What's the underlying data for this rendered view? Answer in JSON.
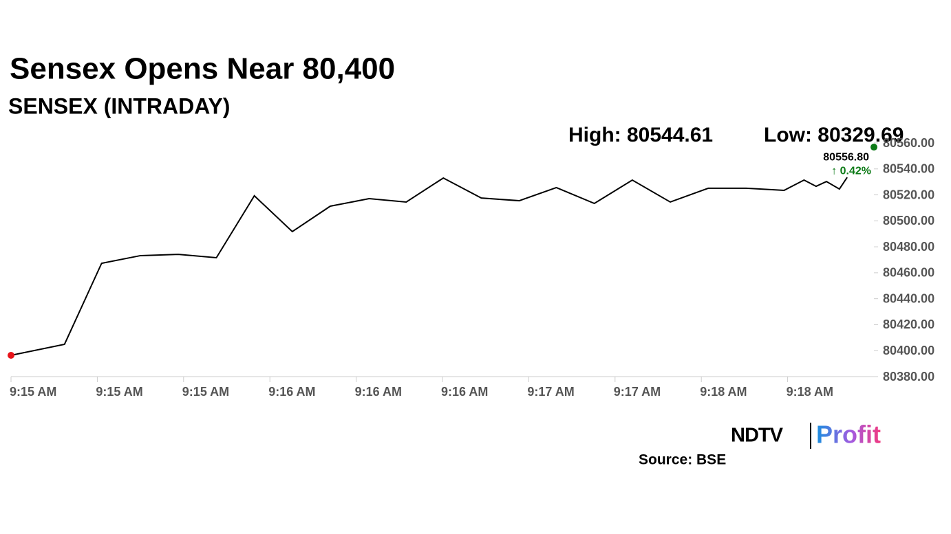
{
  "chart_data": {
    "type": "line",
    "title": "Sensex Opens Near 80,400",
    "subtitle": "SENSEX (INTRADAY)",
    "annotations": [
      "High: 80544.61",
      "Low: 80329.69"
    ],
    "x": [
      0,
      0.62,
      1.05,
      1.5,
      1.94,
      2.38,
      2.82,
      3.26,
      3.7,
      4.15,
      4.58,
      5.01,
      5.45,
      5.89,
      6.32,
      6.76,
      7.2,
      7.64,
      8.08,
      8.52,
      8.96,
      9.19,
      9.33,
      9.45,
      9.6,
      9.69
    ],
    "series": [
      {
        "color": "#000000",
        "values": [
          80396.4,
          80404.9,
          80467.3,
          80473.2,
          80474.2,
          80471.6,
          80519.3,
          80491.7,
          80511.3,
          80517.1,
          80514.5,
          80533.0,
          80517.6,
          80515.5,
          80525.6,
          80513.4,
          80531.4,
          80514.5,
          80525.1,
          80525.1,
          80523.5,
          80531.4,
          80526.6,
          80530.3,
          80524.5,
          80533.5
        ]
      }
    ],
    "markers": [
      {
        "x": 0,
        "value": 80396.4,
        "color": "#e8141a"
      },
      {
        "x": 10,
        "value": 80556.8,
        "color": "#0c7a16",
        "value_label": "80556.80",
        "change": "↑ 0.42%"
      }
    ],
    "xlim": [
      0,
      10
    ],
    "xticks": [
      {
        "value": 0,
        "label": "9:15 AM"
      },
      {
        "value": 1,
        "label": "9:15 AM"
      },
      {
        "value": 2,
        "label": "9:15 AM"
      },
      {
        "value": 3,
        "label": "9:16 AM"
      },
      {
        "value": 4,
        "label": "9:16 AM"
      },
      {
        "value": 5,
        "label": "9:16 AM"
      },
      {
        "value": 6,
        "label": "9:17 AM"
      },
      {
        "value": 7,
        "label": "9:17 AM"
      },
      {
        "value": 8,
        "label": "9:18 AM"
      },
      {
        "value": 9,
        "label": "9:18 AM"
      }
    ],
    "ylim": [
      80380,
      80560
    ],
    "yticks": [
      {
        "value": 80380,
        "label": "80380.00"
      },
      {
        "value": 80400,
        "label": "80400.00"
      },
      {
        "value": 80420,
        "label": "80420.00"
      },
      {
        "value": 80440,
        "label": "80440.00"
      },
      {
        "value": 80460,
        "label": "80460.00"
      },
      {
        "value": 80480,
        "label": "80480.00"
      },
      {
        "value": 80500,
        "label": "80500.00"
      },
      {
        "value": 80520,
        "label": "80520.00"
      },
      {
        "value": 80540,
        "label": "80540.00"
      },
      {
        "value": 80560,
        "label": "80560.00"
      }
    ]
  },
  "footer": {
    "logo_left": "NDTV",
    "logo_right": "Profit",
    "source": "Source: BSE"
  }
}
